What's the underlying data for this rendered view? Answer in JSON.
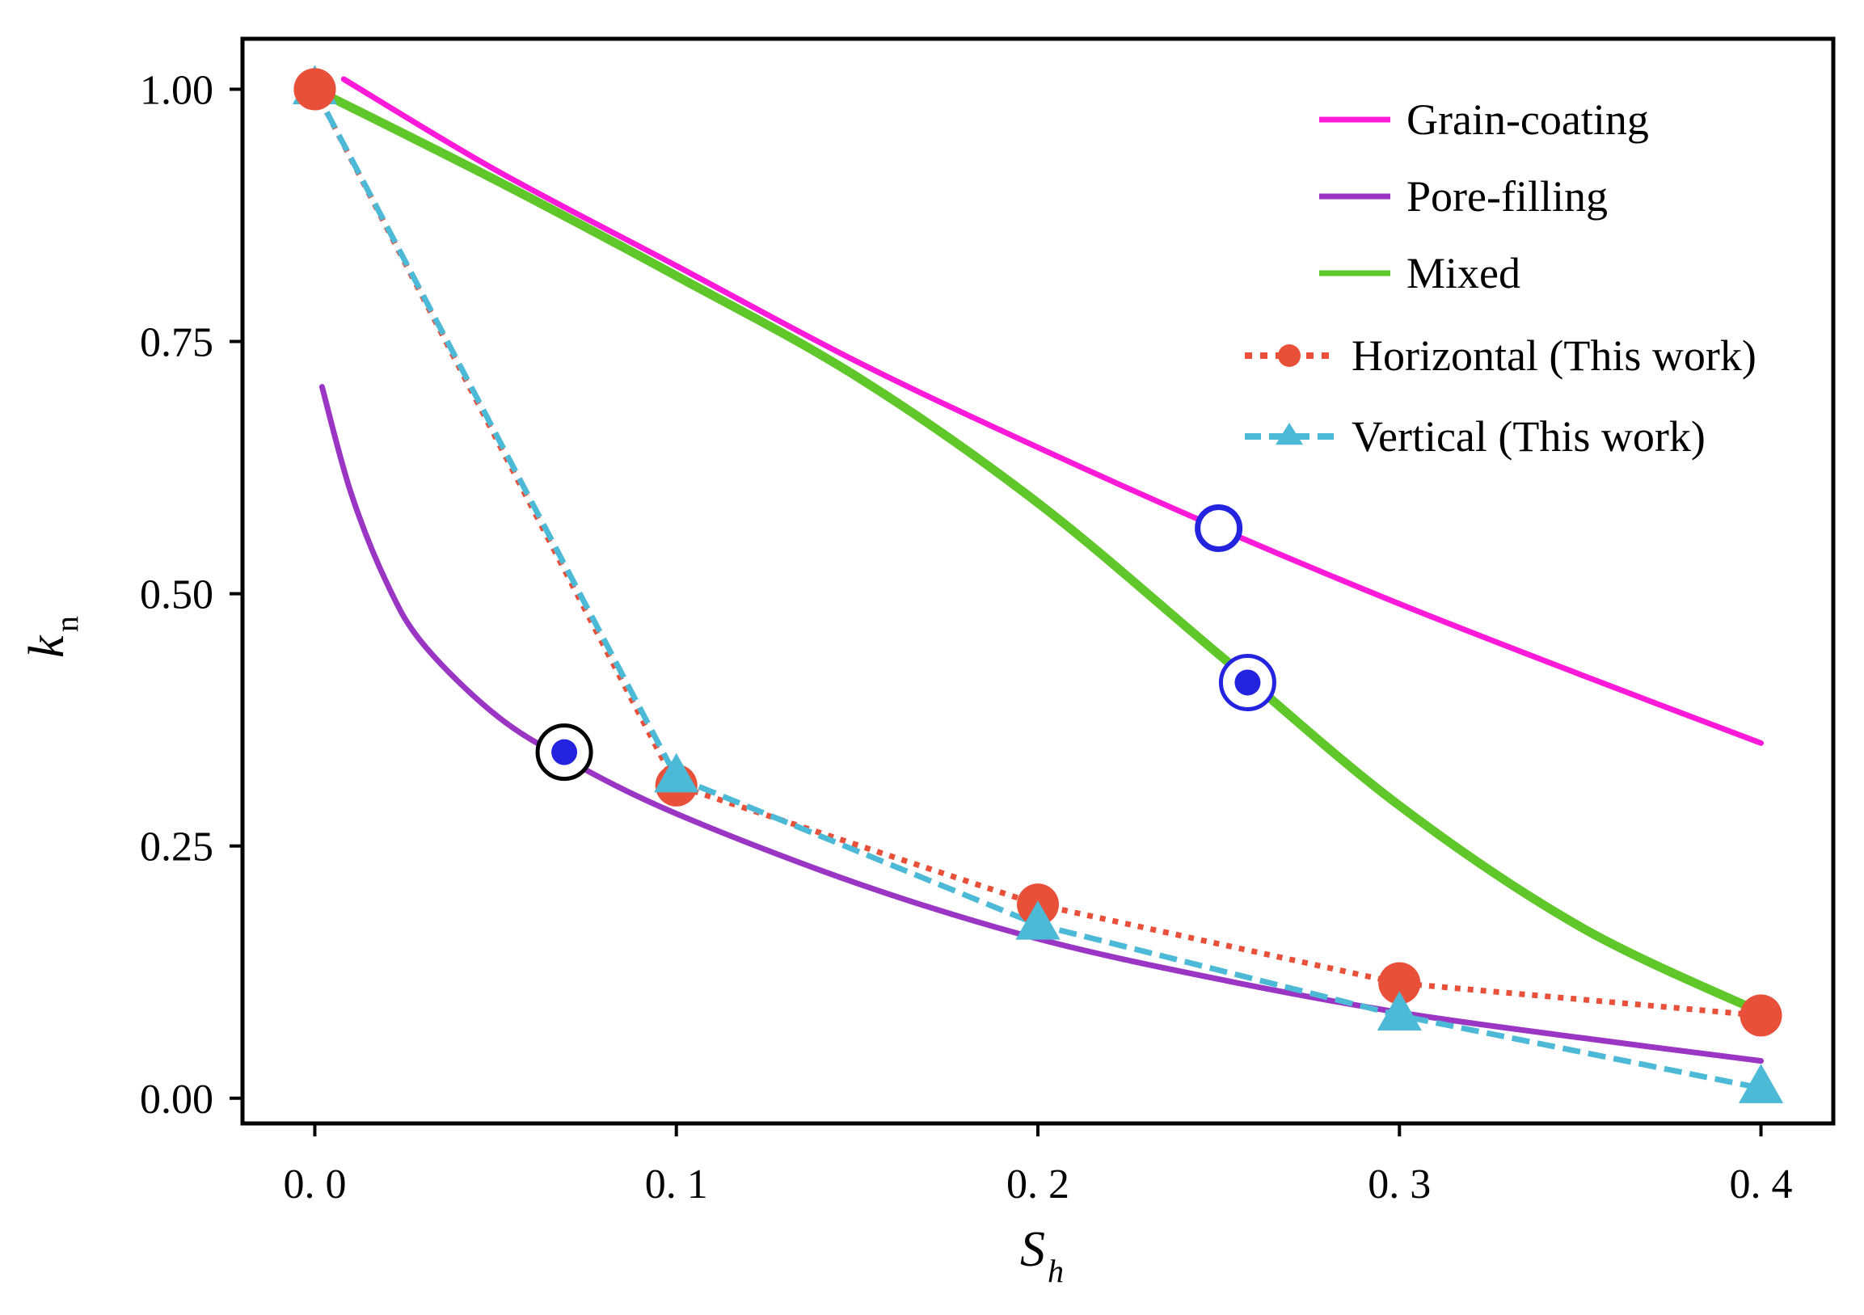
{
  "chart_data": {
    "type": "line",
    "xlabel": {
      "main": "S",
      "sub": "h"
    },
    "ylabel": {
      "main": "k",
      "sub": "n"
    },
    "xlim": [
      -0.02,
      0.42
    ],
    "ylim": [
      -0.025,
      1.05
    ],
    "x_ticks": [
      0.0,
      0.1,
      0.2,
      0.3,
      0.4
    ],
    "x_tick_labels": [
      "0. 0",
      "0. 1",
      "0. 2",
      "0. 3",
      "0. 4"
    ],
    "y_ticks": [
      0.0,
      0.25,
      0.5,
      0.75,
      1.0
    ],
    "y_tick_labels": [
      "0.00",
      "0.25",
      "0.50",
      "0.75",
      "1.00"
    ],
    "grid": false,
    "legend_position": "top-right",
    "series": [
      {
        "name": "Grain-coating",
        "style": "solid",
        "color": "#ff1ad9",
        "x": [
          0.008,
          0.05,
          0.1,
          0.15,
          0.2,
          0.25,
          0.3,
          0.35,
          0.4
        ],
        "y": [
          1.01,
          0.92,
          0.825,
          0.73,
          0.645,
          0.565,
          0.49,
          0.42,
          0.352
        ]
      },
      {
        "name": "Pore-filling",
        "style": "solid",
        "color": "#9a35c4",
        "x": [
          0.002,
          0.01,
          0.02,
          0.03,
          0.05,
          0.07,
          0.1,
          0.15,
          0.2,
          0.25,
          0.3,
          0.35,
          0.4
        ],
        "y": [
          0.705,
          0.6,
          0.51,
          0.45,
          0.38,
          0.335,
          0.282,
          0.213,
          0.158,
          0.118,
          0.085,
          0.06,
          0.037
        ]
      },
      {
        "name": "Mixed",
        "style": "solid",
        "color": "#5fc72a",
        "x": [
          0.0,
          0.05,
          0.1,
          0.15,
          0.2,
          0.25,
          0.3,
          0.35,
          0.4
        ],
        "y": [
          1.0,
          0.91,
          0.815,
          0.715,
          0.59,
          0.44,
          0.29,
          0.17,
          0.085
        ]
      },
      {
        "name": "Horizontal (This work)",
        "style": "dotted",
        "marker": "circle",
        "color": "#e8503a",
        "x": [
          0.0,
          0.1,
          0.2,
          0.3,
          0.4
        ],
        "y": [
          1.0,
          0.31,
          0.192,
          0.114,
          0.082
        ]
      },
      {
        "name": "Vertical (This work)",
        "style": "dashed",
        "marker": "triangle",
        "color": "#4cbad6",
        "x": [
          0.0,
          0.1,
          0.2,
          0.3,
          0.4
        ],
        "y": [
          1.0,
          0.318,
          0.172,
          0.082,
          0.01
        ]
      }
    ],
    "annotations": [
      {
        "kind": "open-ring",
        "color": "#2323e0",
        "x": 0.25,
        "y": 0.565
      },
      {
        "kind": "ringed-dot",
        "color": "#2323e0",
        "ring_color": "#2323e0",
        "x": 0.258,
        "y": 0.412
      },
      {
        "kind": "ringed-dot",
        "color": "#2323e0",
        "ring_color": "#000000",
        "x": 0.069,
        "y": 0.343
      }
    ]
  }
}
